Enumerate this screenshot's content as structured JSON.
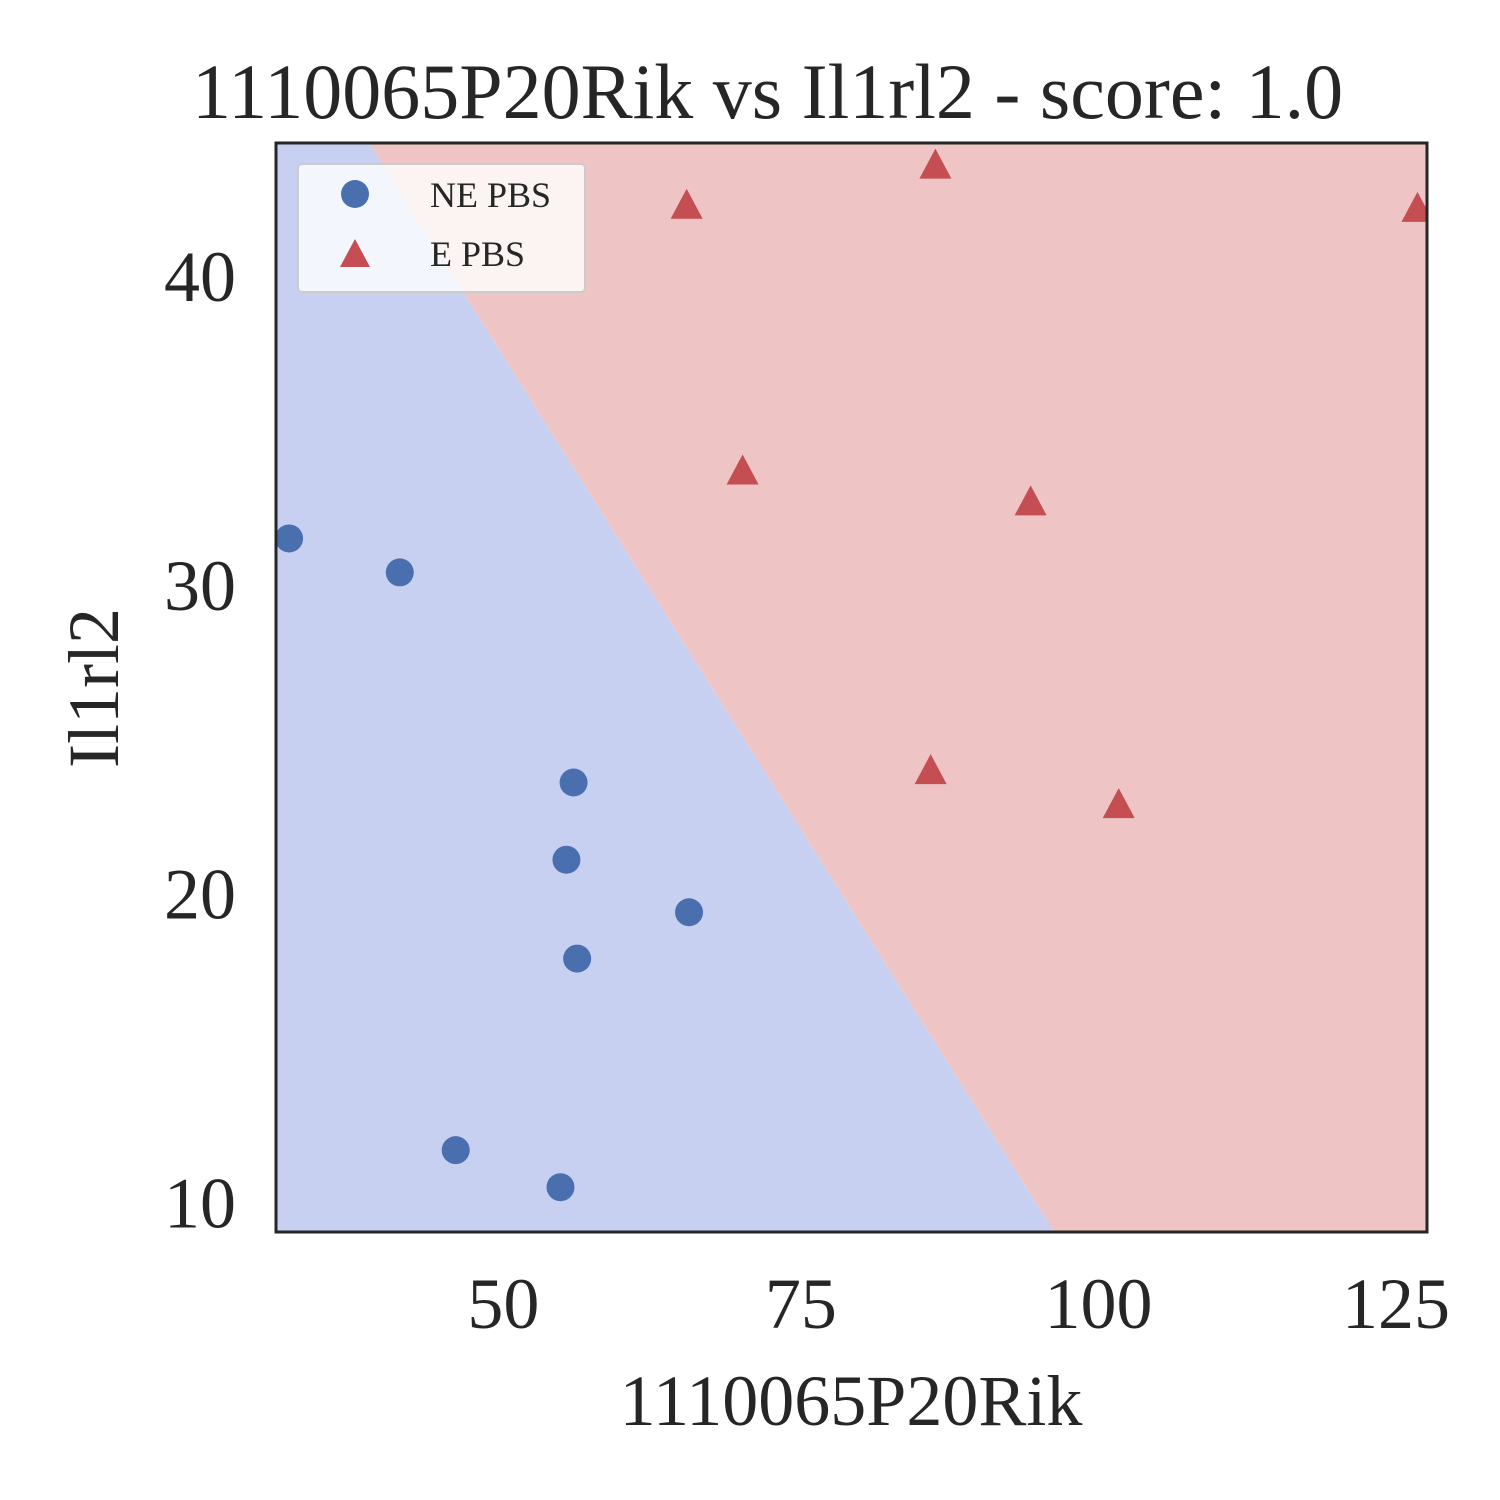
{
  "chart_data": {
    "type": "scatter",
    "title": "1110065P20Rik vs Il1rl2 - score: 1.0",
    "xlabel": "1110065P20Rik",
    "ylabel": "Il1rl2",
    "xlim": [
      30.9,
      127.6
    ],
    "ylim": [
      9.05,
      44.3
    ],
    "x_ticks": [
      50,
      75,
      100,
      125
    ],
    "y_ticks": [
      10,
      20,
      30,
      40
    ],
    "grid": false,
    "legend_position": "top-left",
    "decision_boundary": [
      [
        38.75,
        44.3
      ],
      [
        96.3,
        9.05
      ]
    ],
    "regions": [
      {
        "class": "NE PBS",
        "side": "lower-left",
        "color": "#c8d0f2"
      },
      {
        "class": "E PBS",
        "side": "upper-right",
        "color": "#eec4c4"
      }
    ],
    "series": [
      {
        "name": "NE PBS",
        "marker": "circle",
        "color": "#4a6fae",
        "points": [
          [
            32,
            31.5
          ],
          [
            41.3,
            30.4
          ],
          [
            55.9,
            23.6
          ],
          [
            55.3,
            21.1
          ],
          [
            65.6,
            19.4
          ],
          [
            56.2,
            17.9
          ],
          [
            46,
            11.7
          ],
          [
            54.8,
            10.5
          ]
        ]
      },
      {
        "name": "E PBS",
        "marker": "triangle",
        "color": "#c44e52",
        "points": [
          [
            65.4,
            42.3
          ],
          [
            86.3,
            43.6
          ],
          [
            126.8,
            42.2
          ],
          [
            70.1,
            33.7
          ],
          [
            94.3,
            32.7
          ],
          [
            85.9,
            24
          ],
          [
            101.7,
            22.9
          ]
        ]
      }
    ]
  }
}
